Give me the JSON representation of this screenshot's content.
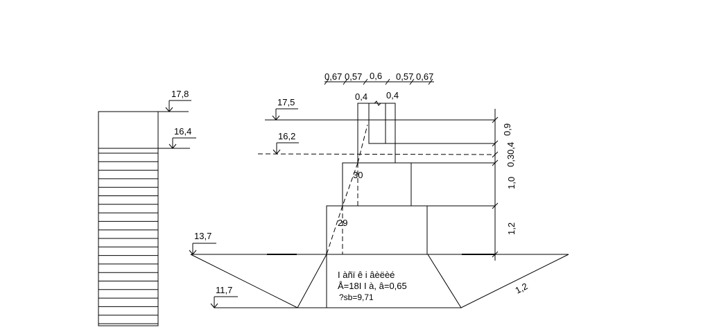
{
  "elevations": {
    "e17_8": "17,8",
    "e16_4": "16,4",
    "e17_5": "17,5",
    "e16_2": "16,2",
    "e13_7": "13,7",
    "e11_7": "11,7"
  },
  "top_dims": [
    "0,67",
    "0,57",
    "0,6",
    "0,57",
    "0,67"
  ],
  "upper_dims": [
    "0,4",
    "0,4"
  ],
  "vertical_dims": {
    "d1": "0,9",
    "d2": "0,30,4",
    "d3": "1,0",
    "d4": "1,2"
  },
  "angles": {
    "a1": "30",
    "a2": "29"
  },
  "slope_label": "1,2",
  "fill_note": {
    "line1": "І àñï ê і âèëèé",
    "line2": "Å=18І І à, â=0,65",
    "line3": "?sb=9,71"
  }
}
